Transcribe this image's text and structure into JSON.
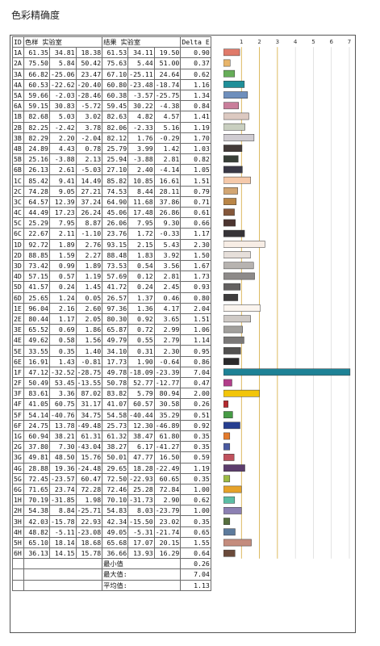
{
  "title": "色彩精确度",
  "table": {
    "headers": {
      "id": "ID",
      "measured": "色样 实验室",
      "result": "结果 实验室",
      "delta": "Delta E"
    },
    "rows": [
      [
        "1A",
        "61.35",
        "34.81",
        "18.38",
        "61.53",
        "34.11",
        "19.50",
        "0.90",
        "#e07a6a"
      ],
      [
        "2A",
        "75.50",
        "5.84",
        "50.42",
        "75.63",
        "5.44",
        "51.00",
        "0.37",
        "#e8b56a"
      ],
      [
        "3A",
        "66.82",
        "-25.06",
        "23.47",
        "67.10",
        "-25.11",
        "24.64",
        "0.62",
        "#66ad58"
      ],
      [
        "4A",
        "60.53",
        "-22.62",
        "-20.40",
        "60.80",
        "-23.48",
        "-18.74",
        "1.16",
        "#1f8f99"
      ],
      [
        "5A",
        "59.66",
        "-2.03",
        "-28.46",
        "60.38",
        "-3.57",
        "-25.75",
        "1.34",
        "#6e8fbd"
      ],
      [
        "6A",
        "59.15",
        "30.83",
        "-5.72",
        "59.45",
        "30.22",
        "-4.38",
        "0.84",
        "#c97e9b"
      ],
      [
        "1B",
        "82.68",
        "5.03",
        "3.02",
        "82.63",
        "4.82",
        "4.57",
        "1.41",
        "#dcc9c1"
      ],
      [
        "2B",
        "82.25",
        "-2.42",
        "3.78",
        "82.06",
        "-2.33",
        "5.16",
        "1.19",
        "#c9cfc0"
      ],
      [
        "3B",
        "82.29",
        "2.20",
        "-2.04",
        "82.12",
        "1.76",
        "-0.29",
        "1.70",
        "#d0ccd2"
      ],
      [
        "4B",
        "24.89",
        "4.43",
        "0.78",
        "25.79",
        "3.99",
        "1.42",
        "1.03",
        "#433a38"
      ],
      [
        "5B",
        "25.16",
        "-3.88",
        "2.13",
        "25.94",
        "-3.88",
        "2.81",
        "0.82",
        "#373f37"
      ],
      [
        "6B",
        "26.13",
        "2.61",
        "-5.03",
        "27.10",
        "2.40",
        "-4.14",
        "1.05",
        "#393846"
      ],
      [
        "1C",
        "85.42",
        "9.41",
        "14.49",
        "85.82",
        "10.85",
        "16.61",
        "1.51",
        "#f5c9aa"
      ],
      [
        "2C",
        "74.28",
        "9.05",
        "27.21",
        "74.53",
        "8.44",
        "28.11",
        "0.79",
        "#d2a673"
      ],
      [
        "3C",
        "64.57",
        "12.39",
        "37.24",
        "64.90",
        "11.68",
        "37.86",
        "0.71",
        "#b98547"
      ],
      [
        "4C",
        "44.49",
        "17.23",
        "26.24",
        "45.06",
        "17.48",
        "26.86",
        "0.61",
        "#84573a"
      ],
      [
        "5C",
        "25.29",
        "7.95",
        "8.87",
        "26.06",
        "7.95",
        "9.30",
        "0.66",
        "#4c3530"
      ],
      [
        "6C",
        "22.67",
        "2.11",
        "-1.10",
        "23.76",
        "1.72",
        "-0.33",
        "1.17",
        "#363337"
      ],
      [
        "1D",
        "92.72",
        "1.89",
        "2.76",
        "93.15",
        "2.15",
        "5.43",
        "2.30",
        "#f7ede5"
      ],
      [
        "2D",
        "88.85",
        "1.59",
        "2.27",
        "88.48",
        "1.83",
        "3.92",
        "1.50",
        "#e6dfda"
      ],
      [
        "3D",
        "73.42",
        "0.99",
        "1.89",
        "73.53",
        "0.54",
        "3.56",
        "1.67",
        "#b7b3b0"
      ],
      [
        "4D",
        "57.15",
        "0.57",
        "1.19",
        "57.69",
        "0.12",
        "2.81",
        "1.73",
        "#8d8a89"
      ],
      [
        "5D",
        "41.57",
        "0.24",
        "1.45",
        "41.72",
        "0.24",
        "2.45",
        "0.93",
        "#636161"
      ],
      [
        "6D",
        "25.65",
        "1.24",
        "0.05",
        "26.57",
        "1.37",
        "0.46",
        "0.80",
        "#3e3c3d"
      ],
      [
        "1E",
        "96.04",
        "2.16",
        "2.60",
        "97.36",
        "1.36",
        "4.17",
        "2.04",
        "#fbf5ef"
      ],
      [
        "2E",
        "80.44",
        "1.17",
        "2.05",
        "80.30",
        "0.92",
        "3.65",
        "1.51",
        "#cfcac6"
      ],
      [
        "3E",
        "65.52",
        "0.69",
        "1.86",
        "65.87",
        "0.72",
        "2.99",
        "1.06",
        "#a2a09d"
      ],
      [
        "4E",
        "49.62",
        "0.58",
        "1.56",
        "49.79",
        "0.55",
        "2.79",
        "1.14",
        "#7a7877"
      ],
      [
        "5E",
        "33.55",
        "0.35",
        "1.40",
        "34.10",
        "0.31",
        "2.30",
        "0.95",
        "#525150"
      ],
      [
        "6E",
        "16.91",
        "1.43",
        "-0.81",
        "17.73",
        "1.90",
        "-0.64",
        "0.86",
        "#2a292b"
      ],
      [
        "1F",
        "47.12",
        "-32.52",
        "-28.75",
        "49.78",
        "-18.09",
        "-23.39",
        "7.04",
        "#1e8296"
      ],
      [
        "2F",
        "50.49",
        "53.45",
        "-13.55",
        "50.78",
        "52.77",
        "-12.77",
        "0.47",
        "#b23d8a"
      ],
      [
        "3F",
        "83.61",
        "3.36",
        "87.02",
        "83.82",
        "5.79",
        "80.94",
        "2.00",
        "#f2c50a"
      ],
      [
        "4F",
        "41.05",
        "60.75",
        "31.17",
        "41.07",
        "60.57",
        "30.58",
        "0.26",
        "#b52a30"
      ],
      [
        "5F",
        "54.14",
        "-40.76",
        "34.75",
        "54.58",
        "-40.44",
        "35.29",
        "0.51",
        "#469b45"
      ],
      [
        "6F",
        "24.75",
        "13.78",
        "-49.48",
        "25.73",
        "12.30",
        "-46.89",
        "0.92",
        "#263e8f"
      ],
      [
        "1G",
        "60.94",
        "38.21",
        "61.31",
        "61.32",
        "38.47",
        "61.80",
        "0.35",
        "#e27a2c"
      ],
      [
        "2G",
        "37.80",
        "7.30",
        "-43.04",
        "38.27",
        "6.17",
        "-41.27",
        "0.35",
        "#4a5aa0"
      ],
      [
        "3G",
        "49.81",
        "48.50",
        "15.76",
        "50.01",
        "47.77",
        "16.50",
        "0.59",
        "#c0515d"
      ],
      [
        "4G",
        "28.88",
        "19.36",
        "-24.48",
        "29.65",
        "18.28",
        "-22.49",
        "1.19",
        "#5c3d6d"
      ],
      [
        "5G",
        "72.45",
        "-23.57",
        "60.47",
        "72.50",
        "-22.93",
        "60.65",
        "0.35",
        "#9cba45"
      ],
      [
        "6G",
        "71.65",
        "23.74",
        "72.28",
        "72.46",
        "25.28",
        "72.84",
        "1.00",
        "#e6a22a"
      ],
      [
        "1H",
        "70.19",
        "-31.85",
        "1.98",
        "70.10",
        "-31.73",
        "2.90",
        "0.62",
        "#5cbda5"
      ],
      [
        "2H",
        "54.38",
        "8.84",
        "-25.71",
        "54.83",
        "8.03",
        "-23.79",
        "1.00",
        "#8c80b3"
      ],
      [
        "3H",
        "42.03",
        "-15.78",
        "22.93",
        "42.34",
        "-15.50",
        "23.02",
        "0.35",
        "#566e3e"
      ],
      [
        "4H",
        "48.82",
        "-5.11",
        "-23.08",
        "49.05",
        "-5.31",
        "-21.74",
        "0.65",
        "#5c7a9c"
      ],
      [
        "5H",
        "65.10",
        "18.14",
        "18.68",
        "65.68",
        "17.07",
        "20.15",
        "1.55",
        "#c48c7d"
      ],
      [
        "6H",
        "36.13",
        "14.15",
        "15.78",
        "36.66",
        "13.93",
        "16.29",
        "0.64",
        "#6a4a3a"
      ]
    ],
    "summary": [
      {
        "label": "最小值",
        "value": "0.26"
      },
      {
        "label": "最大值:",
        "value": "7.04"
      },
      {
        "label": "平均值:",
        "value": "1.13"
      }
    ]
  },
  "chart_data": {
    "type": "bar",
    "orientation": "horizontal",
    "x_ticks": [
      "1",
      "2",
      "3",
      "4",
      "5",
      "6",
      "7"
    ],
    "xlim": [
      0,
      7
    ],
    "categories": [
      "1A",
      "2A",
      "3A",
      "4A",
      "5A",
      "6A",
      "1B",
      "2B",
      "3B",
      "4B",
      "5B",
      "6B",
      "1C",
      "2C",
      "3C",
      "4C",
      "5C",
      "6C",
      "1D",
      "2D",
      "3D",
      "4D",
      "5D",
      "6D",
      "1E",
      "2E",
      "3E",
      "4E",
      "5E",
      "6E",
      "1F",
      "2F",
      "3F",
      "4F",
      "5F",
      "6F",
      "1G",
      "2G",
      "3G",
      "4G",
      "5G",
      "6G",
      "1H",
      "2H",
      "3H",
      "4H",
      "5H",
      "6H"
    ],
    "values": [
      0.9,
      0.37,
      0.62,
      1.16,
      1.34,
      0.84,
      1.41,
      1.19,
      1.7,
      1.03,
      0.82,
      1.05,
      1.51,
      0.79,
      0.71,
      0.61,
      0.66,
      1.17,
      2.3,
      1.5,
      1.67,
      1.73,
      0.93,
      0.8,
      2.04,
      1.51,
      1.06,
      1.14,
      0.95,
      0.86,
      7.04,
      0.47,
      2.0,
      0.26,
      0.51,
      0.92,
      0.35,
      0.35,
      0.59,
      1.19,
      0.35,
      1.0,
      0.62,
      1.0,
      0.35,
      0.65,
      1.55,
      0.64
    ],
    "grid": true,
    "reference_lines": [
      1,
      2,
      3
    ]
  }
}
